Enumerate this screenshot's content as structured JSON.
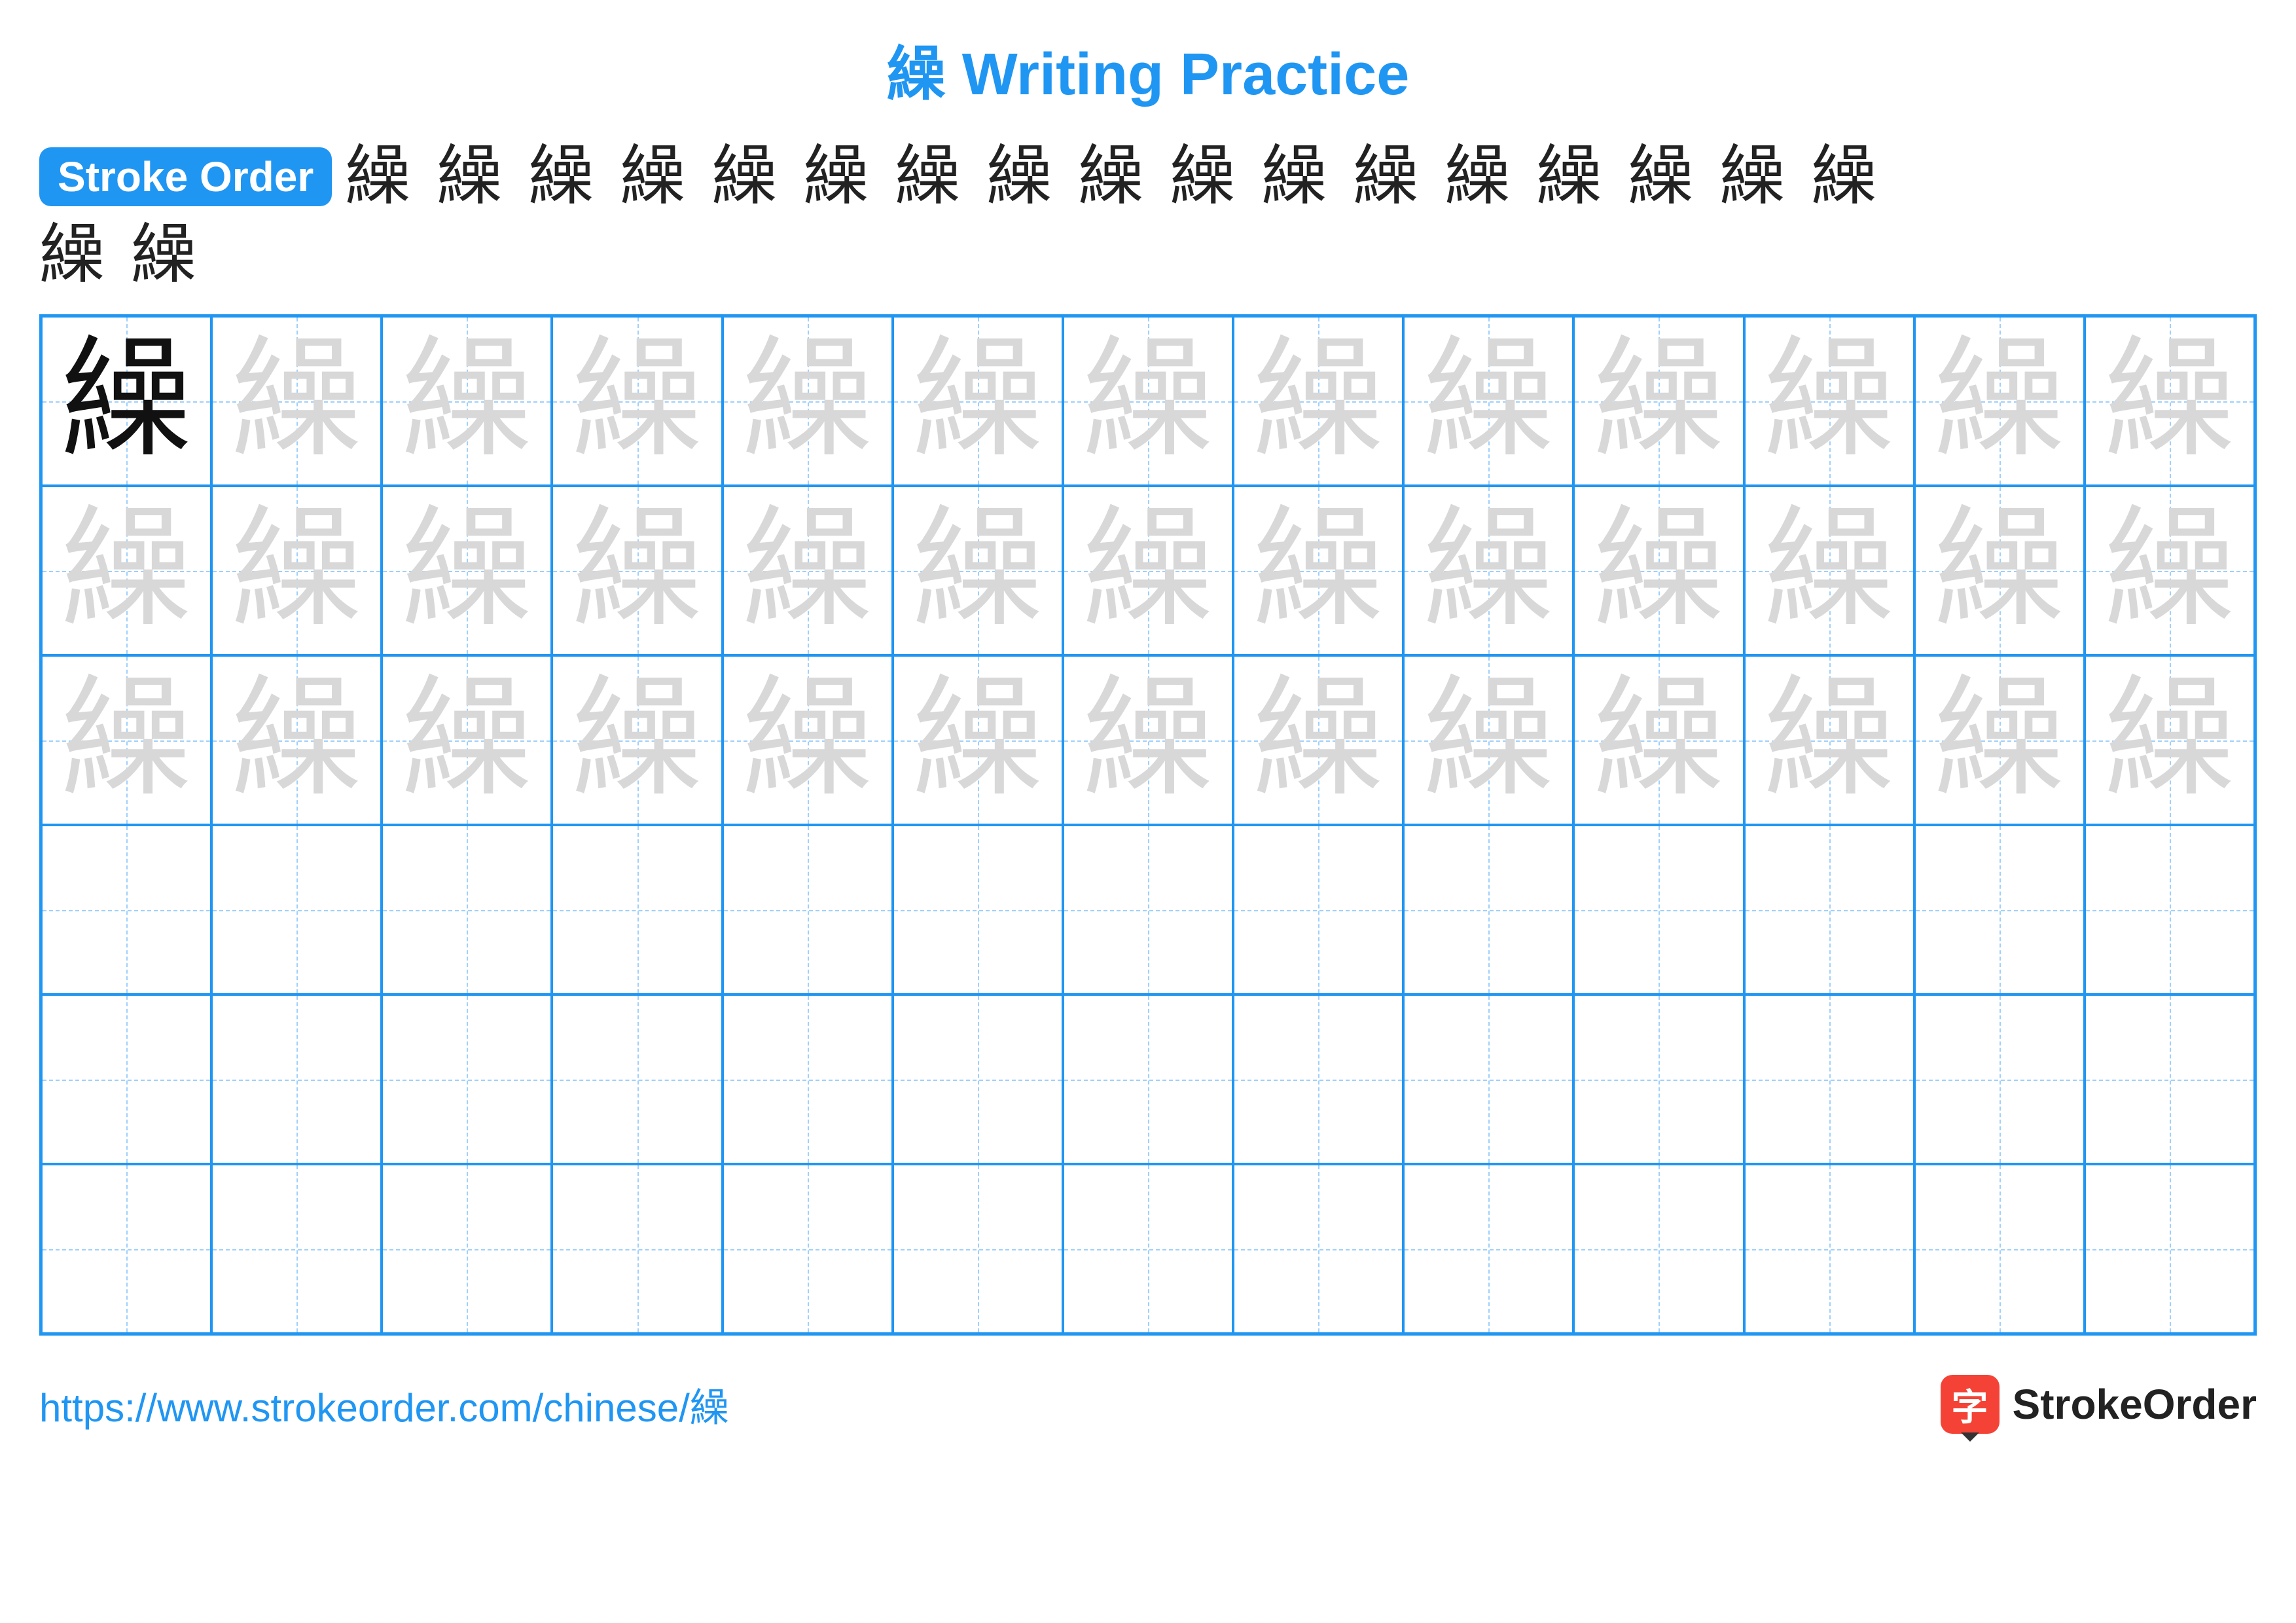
{
  "title": {
    "text": "繰 Writing Practice",
    "color": "#2096f3",
    "fontsize": 90
  },
  "stroke_badge": {
    "label": "Stroke Order",
    "bg": "#2096f3",
    "color": "#ffffff"
  },
  "character": "繰",
  "stroke_count": 19,
  "stroke_steps_row1": [
    "繰",
    "繰",
    "繰",
    "繰",
    "繰",
    "繰",
    "繰",
    "繰",
    "繰",
    "繰",
    "繰",
    "繰",
    "繰",
    "繰",
    "繰",
    "繰",
    "繰"
  ],
  "stroke_steps_row2": [
    "繰",
    "繰"
  ],
  "grid": {
    "cols": 13,
    "rows": 6,
    "border_color": "#2096f3",
    "guide_color": "#9fd0fb",
    "model_color": "#111111",
    "trace_color": "#d8d8d8",
    "model_cell": [
      0,
      0
    ],
    "trace_rows": [
      0,
      1,
      2
    ],
    "blank_rows": [
      3,
      4,
      5
    ]
  },
  "footer": {
    "url": "https://www.strokeorder.com/chinese/繰",
    "url_color": "#2096f3",
    "brand_icon_char": "字",
    "brand_icon_bg": "#f44336",
    "brand_text": "StrokeOrder",
    "brand_text_color": "#222222"
  }
}
